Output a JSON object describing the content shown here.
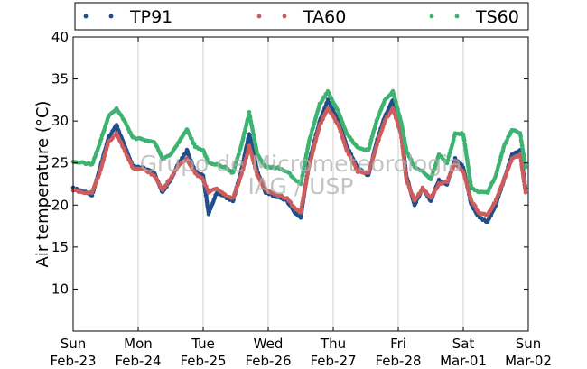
{
  "chart_data": {
    "type": "scatter",
    "ylabel": "Air temperature (°C)",
    "ylim": [
      5,
      40
    ],
    "yticks": [
      10,
      15,
      20,
      25,
      30,
      35,
      40
    ],
    "xlim": [
      "2014-02-23",
      "2014-03-02"
    ],
    "xticks": [
      {
        "date": "2014-02-23",
        "day": "Sun",
        "date_label": "Feb-23"
      },
      {
        "date": "2014-02-24",
        "day": "Mon",
        "date_label": "Feb-24"
      },
      {
        "date": "2014-02-25",
        "day": "Tue",
        "date_label": "Feb-25"
      },
      {
        "date": "2014-02-26",
        "day": "Wed",
        "date_label": "Feb-26"
      },
      {
        "date": "2014-02-27",
        "day": "Thu",
        "date_label": "Feb-27"
      },
      {
        "date": "2014-02-28",
        "day": "Fri",
        "date_label": "Feb-28"
      },
      {
        "date": "2014-03-01",
        "day": "Sat",
        "date_label": "Mar-01"
      },
      {
        "date": "2014-03-02",
        "day": "Sun",
        "date_label": "Mar-02"
      }
    ],
    "grid": "vertical",
    "legend": "top",
    "watermark": [
      "Grupo de Micrometeorologia",
      "IAG / USP"
    ],
    "series": [
      {
        "name": "TP91",
        "color": "#1f4e8c",
        "points": [
          [
            "2014-02-23T00:00",
            22.0
          ],
          [
            "2014-02-23T04:00",
            21.6
          ],
          [
            "2014-02-23T07:00",
            21.2
          ],
          [
            "2014-02-23T10:00",
            24.5
          ],
          [
            "2014-02-23T13:00",
            28.0
          ],
          [
            "2014-02-23T16:00",
            29.5
          ],
          [
            "2014-02-23T19:00",
            27.0
          ],
          [
            "2014-02-23T22:00",
            24.6
          ],
          [
            "2014-02-24T02:00",
            24.4
          ],
          [
            "2014-02-24T06:00",
            23.8
          ],
          [
            "2014-02-24T09:00",
            21.5
          ],
          [
            "2014-02-24T12:00",
            23.0
          ],
          [
            "2014-02-24T15:00",
            25.0
          ],
          [
            "2014-02-24T18:00",
            26.5
          ],
          [
            "2014-02-24T21:00",
            24.0
          ],
          [
            "2014-02-25T00:00",
            23.5
          ],
          [
            "2014-02-25T02:00",
            19.0
          ],
          [
            "2014-02-25T05:00",
            21.5
          ],
          [
            "2014-02-25T08:00",
            21.0
          ],
          [
            "2014-02-25T11:00",
            20.5
          ],
          [
            "2014-02-25T14:00",
            24.0
          ],
          [
            "2014-02-25T17:00",
            28.5
          ],
          [
            "2014-02-25T20:00",
            24.0
          ],
          [
            "2014-02-25T23:00",
            21.5
          ],
          [
            "2014-02-26T03:00",
            21.0
          ],
          [
            "2014-02-26T07:00",
            20.5
          ],
          [
            "2014-02-26T10:00",
            19.0
          ],
          [
            "2014-02-26T12:00",
            18.5
          ],
          [
            "2014-02-26T15:00",
            25.0
          ],
          [
            "2014-02-26T19:00",
            30.0
          ],
          [
            "2014-02-26T22:00",
            32.5
          ],
          [
            "2014-02-27T02:00",
            30.0
          ],
          [
            "2014-02-27T05:00",
            27.0
          ],
          [
            "2014-02-27T09:00",
            24.5
          ],
          [
            "2014-02-27T13:00",
            23.5
          ],
          [
            "2014-02-27T16:00",
            27.5
          ],
          [
            "2014-02-27T19:00",
            30.5
          ],
          [
            "2014-02-27T22:00",
            32.5
          ],
          [
            "2014-02-28T01:00",
            29.0
          ],
          [
            "2014-02-28T03:00",
            23.5
          ],
          [
            "2014-02-28T06:00",
            20.0
          ],
          [
            "2014-02-28T09:00",
            22.0
          ],
          [
            "2014-02-28T12:00",
            20.5
          ],
          [
            "2014-02-28T15:00",
            23.0
          ],
          [
            "2014-02-28T18:00",
            22.5
          ],
          [
            "2014-02-28T21:00",
            25.5
          ],
          [
            "2014-03-01T00:00",
            24.5
          ],
          [
            "2014-03-01T03:00",
            20.0
          ],
          [
            "2014-03-01T06:00",
            18.5
          ],
          [
            "2014-03-01T09:00",
            18.0
          ],
          [
            "2014-03-01T12:00",
            20.0
          ],
          [
            "2014-03-01T15:00",
            23.0
          ],
          [
            "2014-03-01T18:00",
            26.0
          ],
          [
            "2014-03-01T21:00",
            26.5
          ],
          [
            "2014-03-01T23:00",
            22.0
          ]
        ]
      },
      {
        "name": "TA60",
        "color": "#cd5c5c",
        "points": [
          [
            "2014-02-23T00:00",
            21.8
          ],
          [
            "2014-02-23T04:00",
            21.4
          ],
          [
            "2014-02-23T07:00",
            21.5
          ],
          [
            "2014-02-23T10:00",
            24.0
          ],
          [
            "2014-02-23T13:00",
            27.5
          ],
          [
            "2014-02-23T16:00",
            28.5
          ],
          [
            "2014-02-23T19:00",
            26.5
          ],
          [
            "2014-02-23T22:00",
            24.4
          ],
          [
            "2014-02-24T02:00",
            24.3
          ],
          [
            "2014-02-24T06:00",
            23.5
          ],
          [
            "2014-02-24T09:00",
            21.8
          ],
          [
            "2014-02-24T12:00",
            23.2
          ],
          [
            "2014-02-24T15:00",
            24.8
          ],
          [
            "2014-02-24T18:00",
            25.5
          ],
          [
            "2014-02-24T21:00",
            23.8
          ],
          [
            "2014-02-25T00:00",
            23.0
          ],
          [
            "2014-02-25T02:00",
            21.5
          ],
          [
            "2014-02-25T05:00",
            22.0
          ],
          [
            "2014-02-25T08:00",
            21.2
          ],
          [
            "2014-02-25T11:00",
            20.8
          ],
          [
            "2014-02-25T14:00",
            23.5
          ],
          [
            "2014-02-25T17:00",
            27.0
          ],
          [
            "2014-02-25T20:00",
            23.5
          ],
          [
            "2014-02-25T23:00",
            21.8
          ],
          [
            "2014-02-26T03:00",
            21.2
          ],
          [
            "2014-02-26T07:00",
            20.8
          ],
          [
            "2014-02-26T10:00",
            19.5
          ],
          [
            "2014-02-26T12:00",
            19.2
          ],
          [
            "2014-02-26T15:00",
            24.5
          ],
          [
            "2014-02-26T19:00",
            29.5
          ],
          [
            "2014-02-26T22:00",
            31.5
          ],
          [
            "2014-02-27T02:00",
            29.5
          ],
          [
            "2014-02-27T05:00",
            26.5
          ],
          [
            "2014-02-27T09:00",
            24.0
          ],
          [
            "2014-02-27T13:00",
            23.8
          ],
          [
            "2014-02-27T16:00",
            27.0
          ],
          [
            "2014-02-27T19:00",
            30.0
          ],
          [
            "2014-02-27T22:00",
            31.5
          ],
          [
            "2014-02-28T01:00",
            28.5
          ],
          [
            "2014-02-28T03:00",
            23.0
          ],
          [
            "2014-02-28T06:00",
            20.5
          ],
          [
            "2014-02-28T09:00",
            22.0
          ],
          [
            "2014-02-28T12:00",
            20.8
          ],
          [
            "2014-02-28T15:00",
            22.5
          ],
          [
            "2014-02-28T18:00",
            22.8
          ],
          [
            "2014-02-28T21:00",
            25.0
          ],
          [
            "2014-03-01T00:00",
            24.0
          ],
          [
            "2014-03-01T03:00",
            20.5
          ],
          [
            "2014-03-01T06:00",
            19.0
          ],
          [
            "2014-03-01T09:00",
            18.8
          ],
          [
            "2014-03-01T12:00",
            20.5
          ],
          [
            "2014-03-01T15:00",
            23.0
          ],
          [
            "2014-03-01T18:00",
            25.5
          ],
          [
            "2014-03-01T21:00",
            26.0
          ],
          [
            "2014-03-01T23:00",
            21.5
          ]
        ]
      },
      {
        "name": "TS60",
        "color": "#3cb371",
        "points": [
          [
            "2014-02-23T00:00",
            25.2
          ],
          [
            "2014-02-23T04:00",
            25.0
          ],
          [
            "2014-02-23T07:00",
            24.8
          ],
          [
            "2014-02-23T10:00",
            27.5
          ],
          [
            "2014-02-23T13:00",
            30.5
          ],
          [
            "2014-02-23T16:00",
            31.5
          ],
          [
            "2014-02-23T19:00",
            30.0
          ],
          [
            "2014-02-23T22:00",
            28.0
          ],
          [
            "2014-02-24T02:00",
            27.8
          ],
          [
            "2014-02-24T06:00",
            27.5
          ],
          [
            "2014-02-24T09:00",
            25.5
          ],
          [
            "2014-02-24T12:00",
            26.0
          ],
          [
            "2014-02-24T15:00",
            27.5
          ],
          [
            "2014-02-24T18:00",
            29.0
          ],
          [
            "2014-02-24T21:00",
            27.0
          ],
          [
            "2014-02-25T00:00",
            26.5
          ],
          [
            "2014-02-25T02:00",
            25.0
          ],
          [
            "2014-02-25T05:00",
            24.8
          ],
          [
            "2014-02-25T08:00",
            24.5
          ],
          [
            "2014-02-25T11:00",
            23.8
          ],
          [
            "2014-02-25T14:00",
            27.0
          ],
          [
            "2014-02-25T17:00",
            31.0
          ],
          [
            "2014-02-25T20:00",
            26.0
          ],
          [
            "2014-02-25T23:00",
            24.5
          ],
          [
            "2014-02-26T03:00",
            24.5
          ],
          [
            "2014-02-26T07:00",
            24.0
          ],
          [
            "2014-02-26T10:00",
            23.0
          ],
          [
            "2014-02-26T12:00",
            22.5
          ],
          [
            "2014-02-26T15:00",
            27.5
          ],
          [
            "2014-02-26T19:00",
            32.0
          ],
          [
            "2014-02-26T22:00",
            33.5
          ],
          [
            "2014-02-27T02:00",
            31.0
          ],
          [
            "2014-02-27T05:00",
            28.5
          ],
          [
            "2014-02-27T09:00",
            26.8
          ],
          [
            "2014-02-27T13:00",
            26.5
          ],
          [
            "2014-02-27T16:00",
            30.0
          ],
          [
            "2014-02-27T19:00",
            32.5
          ],
          [
            "2014-02-27T22:00",
            33.5
          ],
          [
            "2014-02-28T01:00",
            30.0
          ],
          [
            "2014-02-28T03:00",
            26.5
          ],
          [
            "2014-02-28T06:00",
            24.5
          ],
          [
            "2014-02-28T09:00",
            24.0
          ],
          [
            "2014-02-28T12:00",
            23.0
          ],
          [
            "2014-02-28T15:00",
            26.0
          ],
          [
            "2014-02-28T18:00",
            25.0
          ],
          [
            "2014-02-28T21:00",
            28.5
          ],
          [
            "2014-03-01T00:00",
            28.5
          ],
          [
            "2014-03-01T03:00",
            22.0
          ],
          [
            "2014-03-01T06:00",
            21.5
          ],
          [
            "2014-03-01T09:00",
            21.5
          ],
          [
            "2014-03-01T12:00",
            23.5
          ],
          [
            "2014-03-01T15:00",
            27.0
          ],
          [
            "2014-03-01T18:00",
            29.0
          ],
          [
            "2014-03-01T21:00",
            28.5
          ],
          [
            "2014-03-01T23:00",
            24.5
          ]
        ]
      }
    ]
  }
}
